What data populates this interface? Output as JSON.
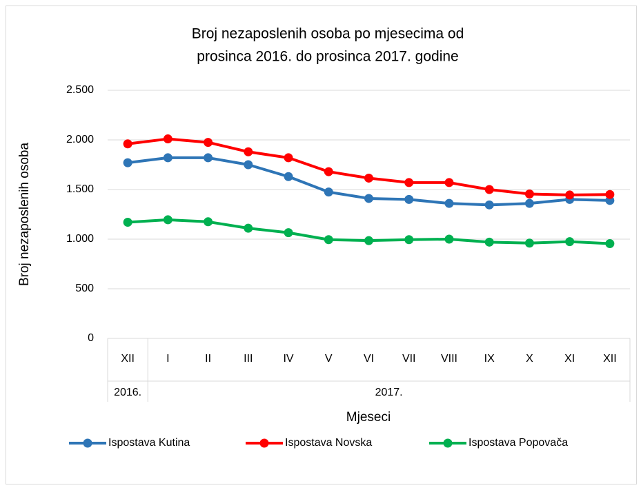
{
  "chart_data": {
    "type": "line",
    "title": [
      "Broj nezaposlenih osoba po mjesecima od",
      "prosinca 2016. do prosinca 2017. godine"
    ],
    "y_label": "Broj nezaposlenih osoba",
    "x_label": "Mjeseci",
    "categories": [
      "XII",
      "I",
      "II",
      "III",
      "IV",
      "V",
      "VI",
      "VII",
      "VIII",
      "IX",
      "X",
      "XI",
      "XII"
    ],
    "category_groups": [
      "2016.",
      "2017.",
      null,
      null,
      null,
      null,
      null,
      null,
      null,
      null,
      null,
      null,
      null
    ],
    "series": [
      {
        "name": "Ispostava Kutina",
        "color": "#2e75b6",
        "values": [
          1770,
          1820,
          1820,
          1750,
          1630,
          1475,
          1410,
          1400,
          1360,
          1345,
          1360,
          1400,
          1390
        ]
      },
      {
        "name": "Ispostava Novska",
        "color": "#ff0000",
        "values": [
          1960,
          2010,
          1975,
          1880,
          1820,
          1680,
          1615,
          1570,
          1570,
          1500,
          1455,
          1445,
          1450
        ]
      },
      {
        "name": "Ispostava Popovača",
        "color": "#00b050",
        "values": [
          1170,
          1195,
          1175,
          1110,
          1065,
          995,
          985,
          995,
          1000,
          970,
          960,
          975,
          955
        ]
      }
    ],
    "ylim": [
      0,
      2500
    ],
    "yticks": [
      0,
      {
        "value": 500,
        "label": "500"
      },
      {
        "value": 1000,
        "label": "1.000"
      },
      {
        "value": 1500,
        "label": "1.500"
      },
      {
        "value": 2000,
        "label": "2.000"
      },
      {
        "value": 2500,
        "label": "2.500"
      }
    ],
    "grid": true,
    "legend": "bottom"
  }
}
